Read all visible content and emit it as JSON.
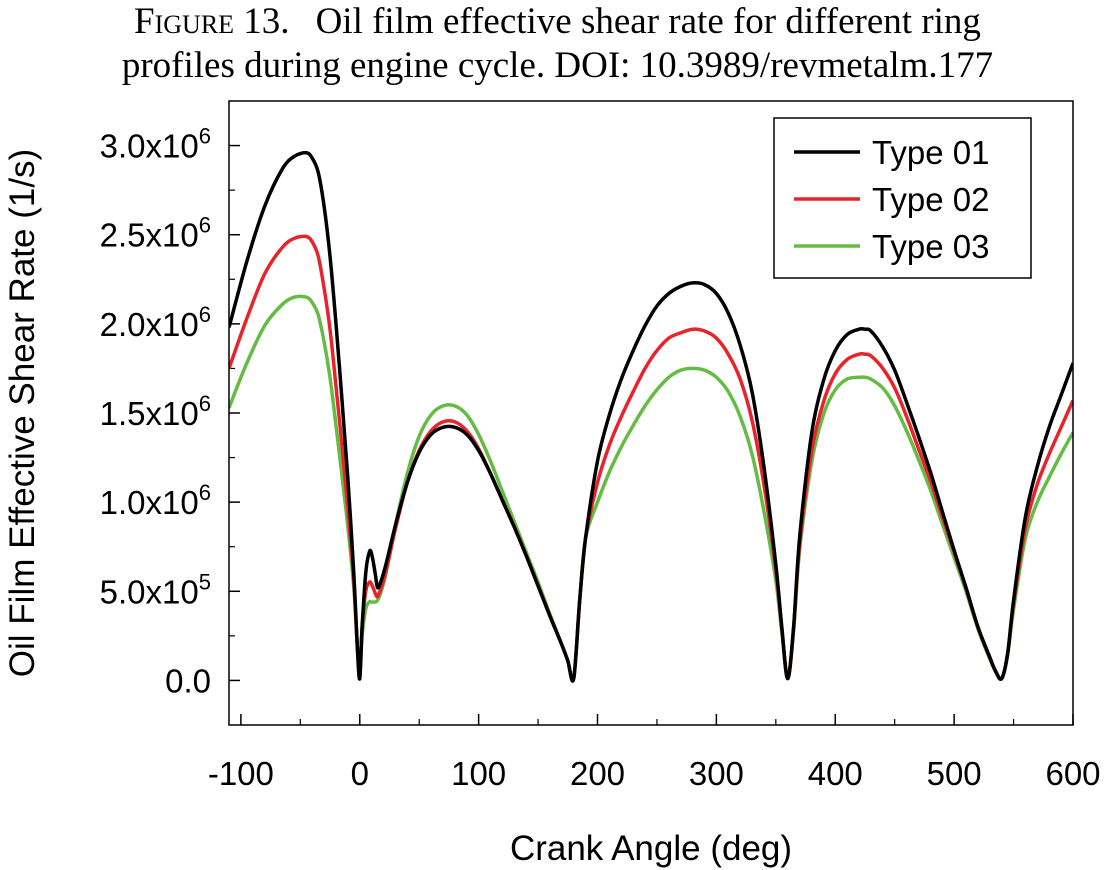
{
  "caption": {
    "figure_label": "Figure 13.",
    "text_line1": "Oil film effective shear rate for different ring",
    "text_line2": "profiles during engine cycle. DOI: 10.3989/revmetalm.177"
  },
  "chart_data": {
    "type": "line",
    "xlabel": "Crank Angle (deg)",
    "ylabel": "Oil Film Effective Shear Rate (1/s)",
    "xlim": [
      -110,
      600
    ],
    "ylim": [
      -250000,
      3250000
    ],
    "xticks": [
      -100,
      0,
      100,
      200,
      300,
      400,
      500,
      600
    ],
    "xtick_labels": [
      "-100",
      "0",
      "100",
      "200",
      "300",
      "400",
      "500",
      "600"
    ],
    "yticks": [
      0,
      500000,
      1000000,
      1500000,
      2000000,
      2500000,
      3000000
    ],
    "ytick_labels": [
      {
        "mantissa": "0.0",
        "exp": ""
      },
      {
        "mantissa": "5.0x10",
        "exp": "5"
      },
      {
        "mantissa": "1.0x10",
        "exp": "6"
      },
      {
        "mantissa": "1.5x10",
        "exp": "6"
      },
      {
        "mantissa": "2.0x10",
        "exp": "6"
      },
      {
        "mantissa": "2.5x10",
        "exp": "6"
      },
      {
        "mantissa": "3.0x10",
        "exp": "6"
      }
    ],
    "legend_position": "top-right",
    "series": [
      {
        "name": "Type 01",
        "color": "#000000",
        "x": [
          -110,
          -95,
          -80,
          -65,
          -55,
          -45,
          -40,
          -35,
          -30,
          -25,
          -20,
          -15,
          -10,
          -5,
          -2,
          0,
          2,
          5,
          8,
          10,
          13,
          15,
          18,
          22,
          30,
          40,
          50,
          60,
          70,
          80,
          90,
          100,
          110,
          120,
          130,
          140,
          150,
          160,
          170,
          175,
          180,
          185,
          190,
          200,
          210,
          220,
          230,
          240,
          250,
          260,
          270,
          280,
          290,
          300,
          310,
          320,
          330,
          340,
          350,
          355,
          360,
          365,
          370,
          380,
          390,
          400,
          410,
          420,
          425,
          430,
          440,
          450,
          460,
          470,
          480,
          490,
          500,
          510,
          520,
          530,
          535,
          540,
          545,
          550,
          560,
          570,
          580,
          590,
          600
        ],
        "values": [
          1980000,
          2350000,
          2660000,
          2870000,
          2940000,
          2960000,
          2930000,
          2850000,
          2660000,
          2380000,
          2000000,
          1580000,
          1130000,
          600000,
          180000,
          10000,
          300000,
          600000,
          720000,
          710000,
          600000,
          520000,
          560000,
          650000,
          870000,
          1110000,
          1280000,
          1380000,
          1420000,
          1420000,
          1380000,
          1290000,
          1160000,
          1010000,
          860000,
          700000,
          530000,
          360000,
          200000,
          110000,
          10000,
          450000,
          800000,
          1230000,
          1490000,
          1690000,
          1850000,
          1990000,
          2100000,
          2170000,
          2210000,
          2230000,
          2220000,
          2170000,
          2060000,
          1880000,
          1620000,
          1200000,
          650000,
          300000,
          10000,
          300000,
          800000,
          1380000,
          1680000,
          1850000,
          1940000,
          1970000,
          1970000,
          1960000,
          1870000,
          1740000,
          1560000,
          1370000,
          1170000,
          950000,
          730000,
          520000,
          300000,
          130000,
          50000,
          10000,
          150000,
          450000,
          920000,
          1200000,
          1420000,
          1600000,
          1780000
        ]
      },
      {
        "name": "Type 02",
        "color": "#e8232b",
        "x": [
          -110,
          -95,
          -80,
          -65,
          -55,
          -45,
          -40,
          -35,
          -30,
          -25,
          -20,
          -15,
          -10,
          -5,
          -2,
          0,
          2,
          5,
          8,
          10,
          13,
          15,
          18,
          22,
          30,
          40,
          50,
          60,
          70,
          80,
          90,
          100,
          110,
          120,
          130,
          140,
          150,
          160,
          170,
          175,
          180,
          185,
          190,
          200,
          210,
          220,
          230,
          240,
          250,
          260,
          270,
          280,
          290,
          300,
          310,
          320,
          330,
          340,
          350,
          355,
          360,
          365,
          370,
          380,
          390,
          400,
          410,
          420,
          425,
          430,
          440,
          450,
          460,
          470,
          480,
          490,
          500,
          510,
          520,
          530,
          535,
          540,
          545,
          550,
          560,
          570,
          580,
          590,
          600
        ],
        "values": [
          1750000,
          2030000,
          2280000,
          2430000,
          2480000,
          2490000,
          2460000,
          2380000,
          2200000,
          1970000,
          1650000,
          1320000,
          960000,
          560000,
          180000,
          30000,
          300000,
          500000,
          550000,
          540000,
          490000,
          470000,
          520000,
          610000,
          850000,
          1110000,
          1290000,
          1400000,
          1450000,
          1450000,
          1400000,
          1300000,
          1160000,
          1010000,
          860000,
          700000,
          530000,
          360000,
          200000,
          110000,
          10000,
          450000,
          800000,
          1110000,
          1320000,
          1480000,
          1620000,
          1750000,
          1850000,
          1920000,
          1950000,
          1970000,
          1960000,
          1920000,
          1830000,
          1690000,
          1460000,
          1100000,
          620000,
          290000,
          10000,
          290000,
          760000,
          1280000,
          1560000,
          1720000,
          1800000,
          1830000,
          1830000,
          1820000,
          1750000,
          1640000,
          1480000,
          1300000,
          1120000,
          920000,
          720000,
          520000,
          300000,
          130000,
          50000,
          10000,
          150000,
          430000,
          860000,
          1100000,
          1270000,
          1420000,
          1570000
        ]
      },
      {
        "name": "Type 03",
        "color": "#66bb44",
        "x": [
          -110,
          -95,
          -80,
          -65,
          -55,
          -45,
          -40,
          -35,
          -30,
          -25,
          -20,
          -15,
          -10,
          -5,
          -2,
          0,
          2,
          5,
          8,
          10,
          13,
          15,
          18,
          22,
          30,
          40,
          50,
          60,
          70,
          80,
          90,
          100,
          110,
          120,
          130,
          140,
          150,
          160,
          170,
          175,
          180,
          185,
          190,
          200,
          210,
          220,
          230,
          240,
          250,
          260,
          270,
          280,
          290,
          300,
          310,
          320,
          330,
          340,
          350,
          355,
          360,
          365,
          370,
          380,
          390,
          400,
          410,
          420,
          425,
          430,
          440,
          450,
          460,
          470,
          480,
          490,
          500,
          510,
          520,
          530,
          535,
          540,
          545,
          550,
          560,
          570,
          580,
          590,
          600
        ],
        "values": [
          1530000,
          1780000,
          1990000,
          2110000,
          2150000,
          2150000,
          2120000,
          2050000,
          1900000,
          1700000,
          1430000,
          1150000,
          860000,
          520000,
          180000,
          30000,
          250000,
          400000,
          440000,
          440000,
          440000,
          450000,
          500000,
          600000,
          870000,
          1160000,
          1370000,
          1490000,
          1540000,
          1540000,
          1490000,
          1380000,
          1230000,
          1060000,
          890000,
          720000,
          550000,
          370000,
          200000,
          110000,
          10000,
          450000,
          800000,
          1000000,
          1170000,
          1310000,
          1430000,
          1540000,
          1630000,
          1700000,
          1740000,
          1750000,
          1740000,
          1700000,
          1620000,
          1480000,
          1270000,
          950000,
          560000,
          270000,
          10000,
          280000,
          730000,
          1220000,
          1490000,
          1630000,
          1690000,
          1700000,
          1700000,
          1690000,
          1640000,
          1540000,
          1400000,
          1240000,
          1070000,
          880000,
          690000,
          500000,
          290000,
          120000,
          50000,
          10000,
          140000,
          400000,
          800000,
          1000000,
          1140000,
          1270000,
          1390000
        ]
      }
    ]
  }
}
